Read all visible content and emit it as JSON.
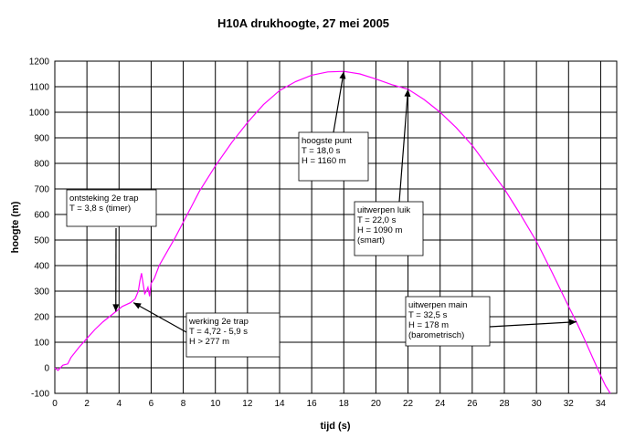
{
  "chart_data": {
    "type": "line",
    "title": "H10A drukhoogte, 27 mei 2005",
    "xlabel": "tijd (s)",
    "ylabel": "hoogte (m)",
    "xlim": [
      0,
      35
    ],
    "ylim": [
      -100,
      1200
    ],
    "xticks": [
      0,
      2,
      4,
      6,
      8,
      10,
      12,
      14,
      16,
      18,
      20,
      22,
      24,
      26,
      28,
      30,
      32,
      34
    ],
    "yticks": [
      -100,
      0,
      100,
      200,
      300,
      400,
      500,
      600,
      700,
      800,
      900,
      1000,
      1100,
      1200
    ],
    "grid": true,
    "line_color": "#ff00ff",
    "series": [
      {
        "name": "",
        "x": [
          0,
          0.2,
          0.5,
          0.8,
          1.0,
          1.5,
          2.0,
          2.5,
          3.0,
          3.5,
          3.8,
          4.2,
          4.72,
          5.0,
          5.2,
          5.3,
          5.4,
          5.5,
          5.6,
          5.7,
          5.8,
          5.9,
          6.0,
          6.2,
          6.5,
          7.0,
          7.5,
          8.0,
          8.5,
          9.0,
          10.0,
          11.0,
          12.0,
          13.0,
          14.0,
          15.0,
          16.0,
          17.0,
          18.0,
          19.0,
          20.0,
          21.0,
          22.0,
          23.0,
          24.0,
          25.0,
          26.0,
          27.0,
          28.0,
          29.0,
          30.0,
          31.0,
          32.0,
          32.5,
          33.0,
          33.5,
          34.0,
          34.3,
          34.6
        ],
        "y": [
          0,
          -10,
          10,
          15,
          40,
          80,
          115,
          150,
          180,
          205,
          220,
          240,
          255,
          270,
          300,
          340,
          370,
          330,
          290,
          300,
          315,
          280,
          330,
          350,
          400,
          455,
          510,
          570,
          630,
          690,
          790,
          880,
          960,
          1030,
          1085,
          1120,
          1145,
          1158,
          1160,
          1150,
          1130,
          1108,
          1090,
          1050,
          1000,
          940,
          870,
          785,
          700,
          600,
          495,
          370,
          240,
          178,
          110,
          40,
          -30,
          -70,
          -100
        ]
      }
    ],
    "annotations": [
      {
        "lines": [
          "ontsteking 2e trap",
          "T = 3,8 s  (timer)"
        ],
        "point": [
          3.8,
          220
        ]
      },
      {
        "lines": [
          "werking 2e trap",
          "T = 4,72 -  5,9 s",
          "H > 277 m"
        ],
        "point": [
          4.9,
          255
        ]
      },
      {
        "lines": [
          "hoogste punt",
          "T = 18,0 s",
          "H = 1160 m"
        ],
        "point": [
          18.0,
          1160
        ]
      },
      {
        "lines": [
          "uitwerpen luik",
          "T = 22,0 s",
          "H = 1090 m",
          "(smart)"
        ],
        "point": [
          22.0,
          1090
        ]
      },
      {
        "lines": [
          "uitwerpen main",
          "T = 32,5 s",
          "H = 178 m",
          "(barometrisch)"
        ],
        "point": [
          32.5,
          180
        ]
      }
    ]
  }
}
